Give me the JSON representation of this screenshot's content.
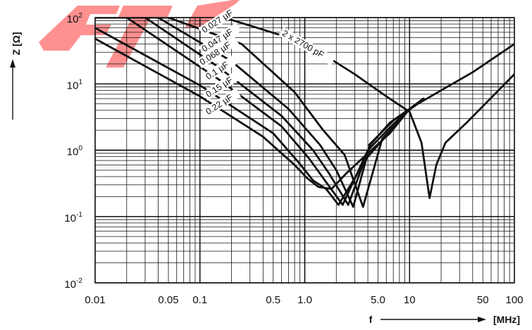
{
  "chart_data": {
    "type": "line",
    "x_scale": "log",
    "y_scale": "log",
    "xlim": [
      0.01,
      100
    ],
    "ylim": [
      0.01,
      100
    ],
    "grid": true,
    "x_ticks": [
      {
        "value": 0.01,
        "label": "0.01"
      },
      {
        "value": 0.05,
        "label": "0.05"
      },
      {
        "value": 0.1,
        "label": "0.1"
      },
      {
        "value": 0.5,
        "label": "0.5"
      },
      {
        "value": 1,
        "label": "1.0"
      },
      {
        "value": 5,
        "label": "5.0"
      },
      {
        "value": 10,
        "label": "10"
      },
      {
        "value": 50,
        "label": "50"
      },
      {
        "value": 100,
        "label": "100"
      }
    ],
    "y_ticks": [
      {
        "value": 100,
        "base": "10",
        "exp": "2"
      },
      {
        "value": 10,
        "base": "10",
        "exp": "1"
      },
      {
        "value": 1,
        "base": "10",
        "exp": "0"
      },
      {
        "value": 0.1,
        "base": "10",
        "exp": "-1"
      },
      {
        "value": 0.01,
        "base": "10",
        "exp": "-2"
      }
    ],
    "xlabel": "f",
    "xunit": "[MHz]",
    "ylabel": "Z [Ω]",
    "series": [
      {
        "name": "0.027 µF",
        "x": [
          0.01,
          0.05,
          0.25,
          0.8,
          1.5,
          2.4,
          3.6,
          5.5,
          10,
          13.6
        ],
        "y": [
          100,
          100,
          40,
          7.5,
          2.0,
          0.85,
          0.14,
          1.5,
          4.2,
          6.0
        ]
      },
      {
        "name": "0.047 µF",
        "x": [
          0.01,
          0.04,
          0.2,
          0.7,
          1.4,
          2.0,
          2.9,
          4.2,
          6.5,
          10,
          13.6
        ],
        "y": [
          100,
          100,
          22,
          4.2,
          1.2,
          0.5,
          0.14,
          1.2,
          2.6,
          4.2,
          6.0
        ]
      },
      {
        "name": "0.068 µF",
        "x": [
          0.01,
          0.03,
          0.15,
          0.6,
          1.2,
          1.7,
          2.6,
          4.2,
          6.5,
          10,
          13.6
        ],
        "y": [
          100,
          100,
          18,
          3.3,
          1.0,
          0.45,
          0.15,
          1.2,
          2.6,
          4.2,
          6.0
        ]
      },
      {
        "name": "0.1 µF",
        "x": [
          0.01,
          0.02,
          0.15,
          0.6,
          1.1,
          1.5,
          2.3,
          4.0,
          6.5,
          10,
          13.6
        ],
        "y": [
          100,
          100,
          11.8,
          2.3,
          0.75,
          0.38,
          0.15,
          1.0,
          2.2,
          4.2,
          6.0
        ]
      },
      {
        "name": "0.15 µF",
        "x": [
          0.01,
          0.1,
          0.5,
          0.9,
          1.2,
          1.6,
          2.1,
          4.0,
          6.5,
          10,
          13.6
        ],
        "y": [
          70,
          9.5,
          1.8,
          0.62,
          0.35,
          0.26,
          0.15,
          0.8,
          1.9,
          4.2,
          6.0
        ]
      },
      {
        "name": "0.22 µF",
        "x": [
          0.01,
          0.1,
          0.4,
          0.8,
          1.05,
          1.35,
          1.8,
          2.5,
          4.0,
          6.5,
          10,
          13.6
        ],
        "y": [
          48,
          6.5,
          1.6,
          0.6,
          0.38,
          0.28,
          0.26,
          0.45,
          0.9,
          1.8,
          4.2,
          6.0
        ]
      },
      {
        "name": "2 x 2700 pF",
        "x": [
          0.17,
          1,
          3,
          6,
          10,
          13,
          15.5,
          18,
          22,
          35,
          100
        ],
        "y": [
          100,
          42,
          14,
          6.5,
          3.8,
          1.3,
          0.19,
          0.6,
          1.3,
          2.6,
          14
        ]
      },
      {
        "name": "",
        "x": [
          4.1,
          7,
          12,
          20,
          40,
          100
        ],
        "y": [
          1.2,
          2.8,
          5.0,
          8.0,
          15,
          40
        ]
      }
    ]
  }
}
